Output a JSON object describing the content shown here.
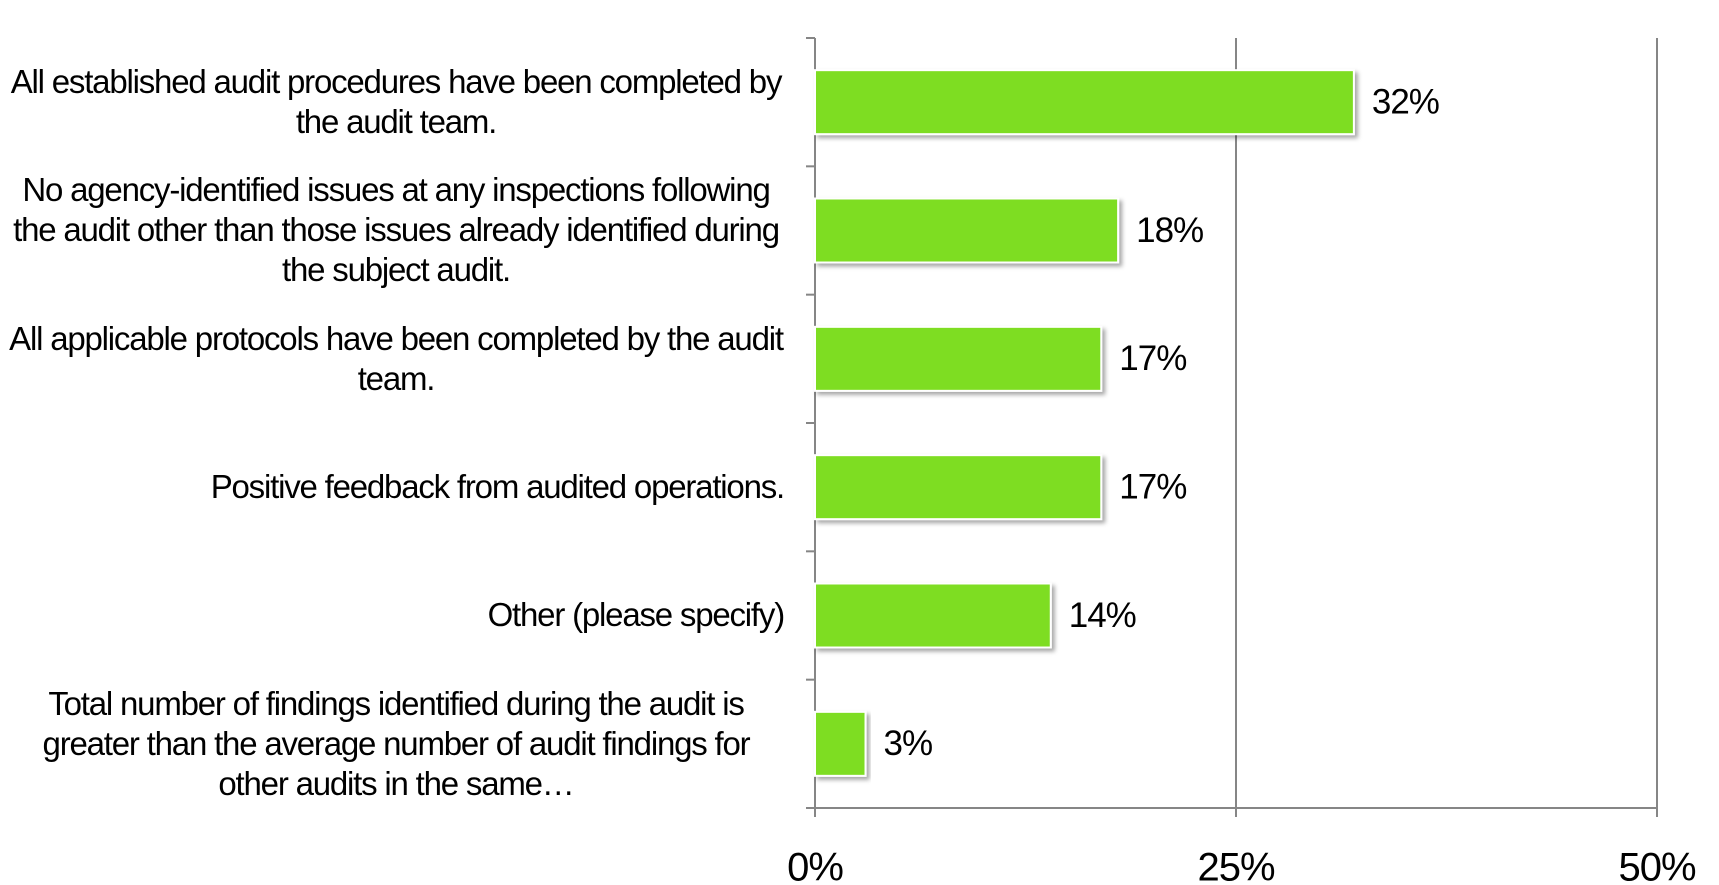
{
  "chart_data": {
    "type": "hbar",
    "categories": [
      "All established audit procedures have been completed by the audit team.",
      "No agency-identified issues at any inspections following the audit other than those issues already identified during the subject audit.",
      "All applicable protocols have been completed by the audit team.",
      "Positive feedback from audited operations.",
      "Other (please specify)",
      "Total number of findings identified during the audit is greater than the average number of audit findings for other audits in the same…"
    ],
    "values": [
      32,
      18,
      17,
      17,
      14,
      3
    ],
    "value_labels": [
      "32%",
      "18%",
      "17%",
      "17%",
      "14%",
      "3%"
    ],
    "color": "#7edd22",
    "xlim": [
      0,
      50
    ],
    "xticks": [
      {
        "value": 0,
        "label": "0%"
      },
      {
        "value": 25,
        "label": "25%"
      },
      {
        "value": 50,
        "label": "50%"
      }
    ],
    "grid": true
  }
}
